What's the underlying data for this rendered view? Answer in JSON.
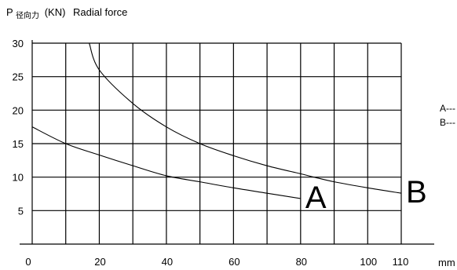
{
  "chart_data": {
    "type": "line",
    "y_axis_label": {
      "symbol": "P",
      "subscript": "径向力",
      "units": "(KN)",
      "english": "Radial force"
    },
    "x_unit": "mm",
    "x_ticks": [
      "0",
      "20",
      "40",
      "60",
      "80",
      "100",
      "110"
    ],
    "y_ticks": [
      "5",
      "10",
      "15",
      "20",
      "25",
      "30"
    ],
    "xlim": [
      0,
      110
    ],
    "ylim": [
      0,
      30
    ],
    "x_grid_step": 10,
    "y_grid_step": 5,
    "grid": true,
    "series": [
      {
        "name": "A",
        "x": [
          0,
          10,
          20,
          30,
          40,
          50,
          60,
          70,
          80
        ],
        "y": [
          17.5,
          15.0,
          13.3,
          11.7,
          10.2,
          9.3,
          8.4,
          7.6,
          6.8
        ]
      },
      {
        "name": "B",
        "x": [
          17,
          20,
          30,
          40,
          50,
          60,
          70,
          80,
          84,
          90,
          100,
          110
        ],
        "y": [
          30.0,
          26.0,
          21.0,
          17.5,
          15.0,
          13.2,
          11.7,
          10.5,
          10.0,
          9.3,
          8.4,
          7.6
        ]
      }
    ],
    "legend_entries": [
      "A---",
      "B---"
    ]
  }
}
